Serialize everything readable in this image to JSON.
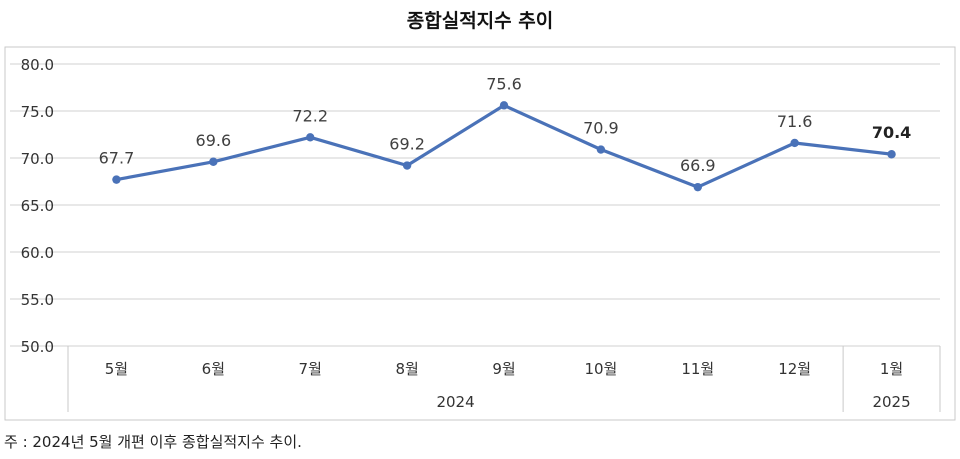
{
  "chart_data": {
    "type": "line",
    "title": "종합실적지수  추이",
    "categories": [
      "5월",
      "6월",
      "7월",
      "8월",
      "9월",
      "10월",
      "11월",
      "12월",
      "1월"
    ],
    "year_groups": [
      {
        "label": "2024",
        "start": 0,
        "end": 7
      },
      {
        "label": "2025",
        "start": 8,
        "end": 8
      }
    ],
    "series": [
      {
        "values": [
          67.7,
          69.6,
          72.2,
          69.2,
          75.6,
          70.9,
          66.9,
          71.6,
          70.4
        ]
      }
    ],
    "data_labels": [
      "67.7",
      "69.6",
      "72.2",
      "69.2",
      "75.6",
      "70.9",
      "66.9",
      "71.6",
      "70.4"
    ],
    "highlight_last_label": true,
    "y_ticks": [
      "80.0",
      "75.0",
      "70.0",
      "65.0",
      "60.0",
      "55.0",
      "50.0"
    ],
    "ylim": [
      50,
      80
    ],
    "grid": true,
    "line_color": "#4a72b8",
    "grid_color": "#d9d9d9",
    "frame_color": "#c9c9c9"
  },
  "footnote": "주 : 2024년 5월 개편 이후 종합실적지수 추이."
}
